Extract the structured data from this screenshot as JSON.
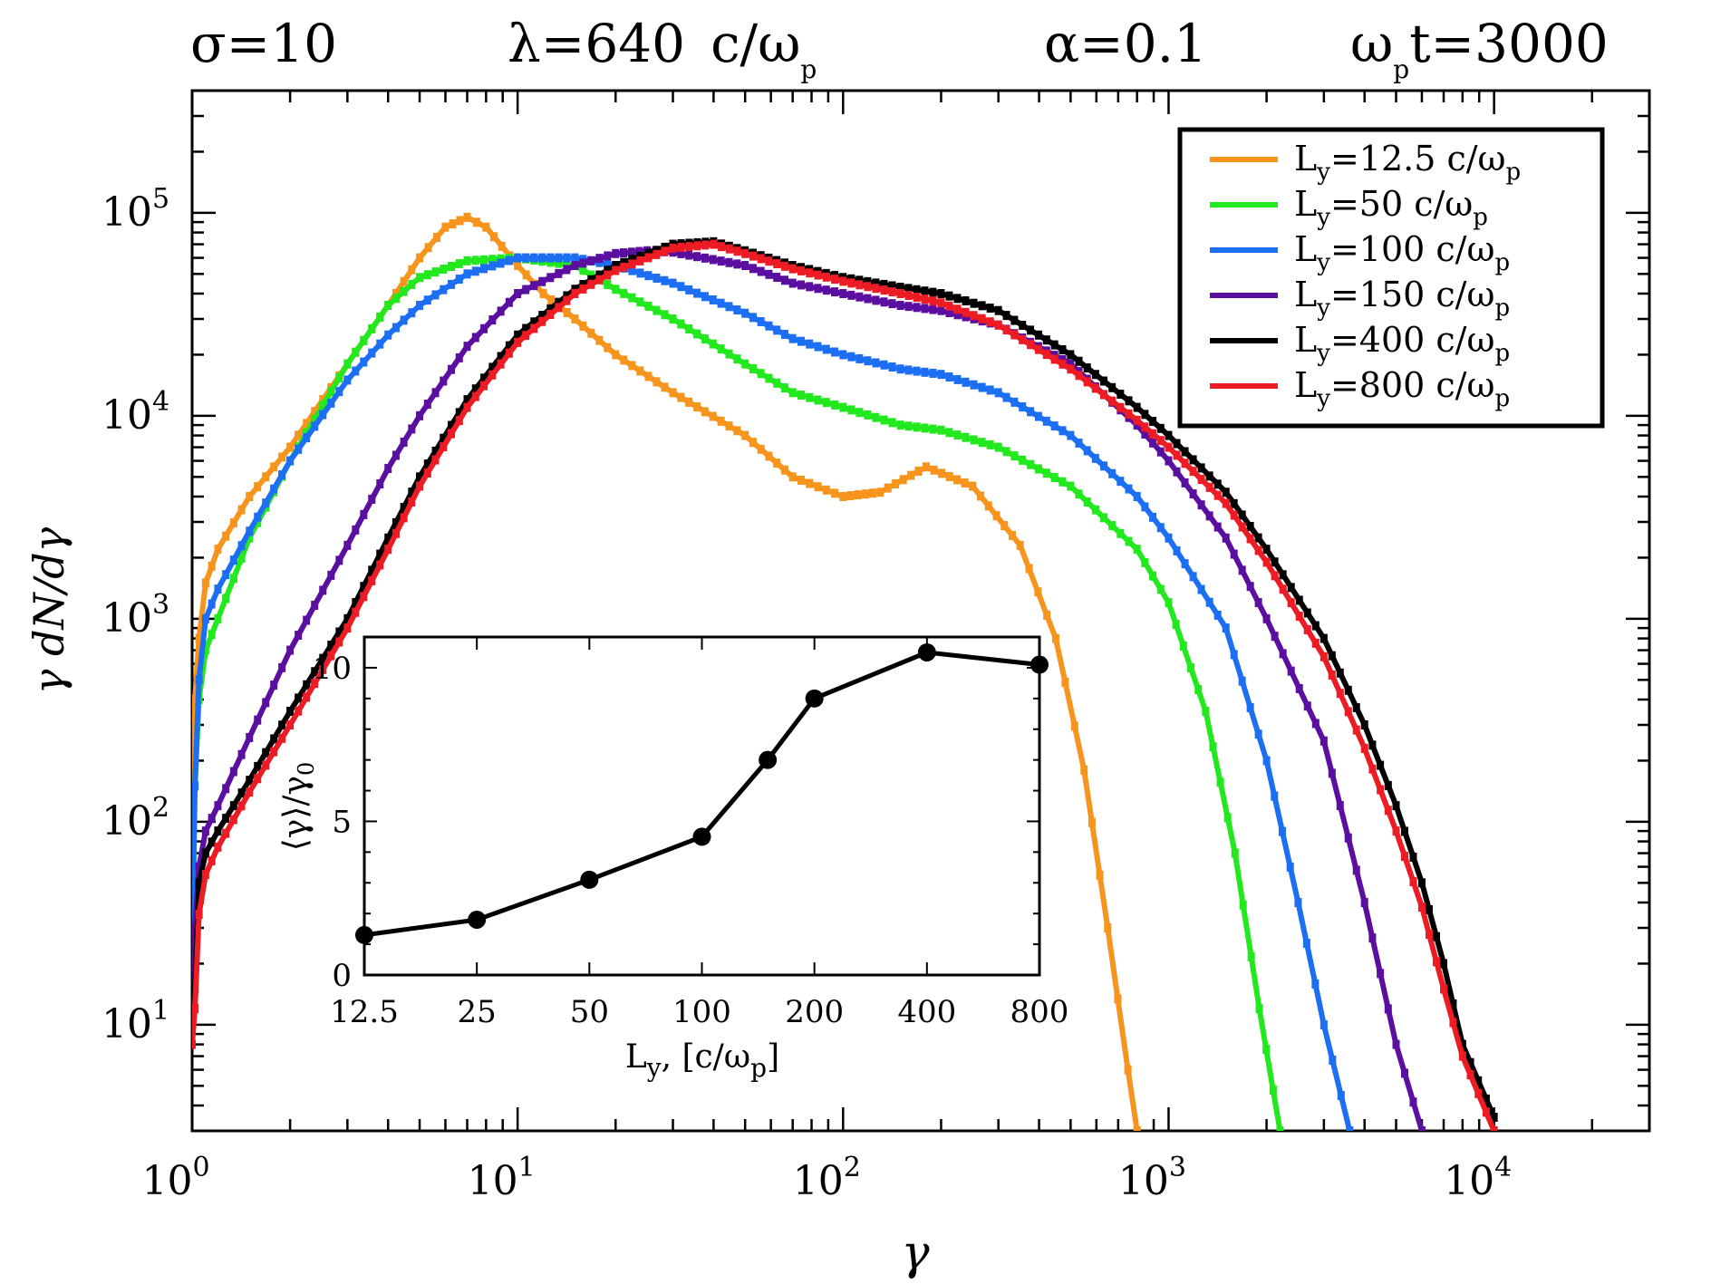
{
  "header": {
    "sigma": "σ=10",
    "lambda": "λ=640",
    "lambda_unit": "c/ω",
    "lambda_unit_sub": "p",
    "alpha": "α=0.1",
    "time_prefix": "ω",
    "time_prefix_sub": "p",
    "time_rest": "t=3000"
  },
  "chart_data": [
    {
      "type": "line",
      "title": "",
      "xlabel": "γ",
      "ylabel": "γ dN/dγ",
      "xscale": "log",
      "yscale": "log",
      "xlim": [
        1,
        30000
      ],
      "ylim": [
        3,
        400000
      ],
      "grid": false,
      "legend_position": "top-right",
      "x_ticks": [
        {
          "base": "10",
          "exp": "0"
        },
        {
          "base": "10",
          "exp": "1"
        },
        {
          "base": "10",
          "exp": "2"
        },
        {
          "base": "10",
          "exp": "3"
        },
        {
          "base": "10",
          "exp": "4"
        }
      ],
      "y_ticks": [
        {
          "base": "10",
          "exp": "1"
        },
        {
          "base": "10",
          "exp": "2"
        },
        {
          "base": "10",
          "exp": "3"
        },
        {
          "base": "10",
          "exp": "4"
        },
        {
          "base": "10",
          "exp": "5"
        }
      ],
      "series": [
        {
          "name": "L_y=12.5 c/ω_p",
          "legend_label": {
            "pre": "L",
            "sub1": "y",
            "mid": "=12.5 c/ω",
            "sub2": "p"
          },
          "color": "#f7941d",
          "points": [
            [
              1.0,
              30
            ],
            [
              1.02,
              400
            ],
            [
              1.05,
              800
            ],
            [
              1.1,
              1500
            ],
            [
              1.2,
              2200
            ],
            [
              1.5,
              4000
            ],
            [
              2,
              7000
            ],
            [
              3,
              18000
            ],
            [
              4,
              35000
            ],
            [
              5,
              60000
            ],
            [
              6,
              85000
            ],
            [
              7,
              95000
            ],
            [
              8,
              85000
            ],
            [
              10,
              55000
            ],
            [
              12,
              40000
            ],
            [
              15,
              30000
            ],
            [
              20,
              20000
            ],
            [
              30,
              13000
            ],
            [
              50,
              8000
            ],
            [
              70,
              5000
            ],
            [
              100,
              4000
            ],
            [
              130,
              4200
            ],
            [
              180,
              5600
            ],
            [
              250,
              4500
            ],
            [
              350,
              2300
            ],
            [
              450,
              800
            ],
            [
              550,
              180
            ],
            [
              650,
              30
            ],
            [
              750,
              6
            ],
            [
              800,
              3
            ]
          ]
        },
        {
          "name": "L_y=50 c/ω_p",
          "legend_label": {
            "pre": "L",
            "sub1": "y",
            "mid": "=50 c/ω",
            "sub2": "p"
          },
          "color": "#22e81e",
          "points": [
            [
              1.0,
              20
            ],
            [
              1.02,
              150
            ],
            [
              1.05,
              400
            ],
            [
              1.1,
              700
            ],
            [
              1.2,
              1000
            ],
            [
              1.5,
              2500
            ],
            [
              2,
              6000
            ],
            [
              3,
              18000
            ],
            [
              4,
              35000
            ],
            [
              5,
              48000
            ],
            [
              7,
              58000
            ],
            [
              10,
              60000
            ],
            [
              15,
              55000
            ],
            [
              20,
              42000
            ],
            [
              30,
              30000
            ],
            [
              50,
              18000
            ],
            [
              70,
              13000
            ],
            [
              100,
              11000
            ],
            [
              150,
              9000
            ],
            [
              200,
              8500
            ],
            [
              300,
              7000
            ],
            [
              500,
              4500
            ],
            [
              800,
              2200
            ],
            [
              1000,
              1200
            ],
            [
              1300,
              350
            ],
            [
              1600,
              70
            ],
            [
              1900,
              12
            ],
            [
              2200,
              3
            ]
          ]
        },
        {
          "name": "L_y=100 c/ω_p",
          "legend_label": {
            "pre": "L",
            "sub1": "y",
            "mid": "=100 c/ω",
            "sub2": "p"
          },
          "color": "#1c6ef2",
          "points": [
            [
              1.0,
              25
            ],
            [
              1.02,
              150
            ],
            [
              1.05,
              500
            ],
            [
              1.1,
              1000
            ],
            [
              1.2,
              1400
            ],
            [
              1.5,
              2700
            ],
            [
              2,
              6000
            ],
            [
              3,
              15000
            ],
            [
              4,
              25000
            ],
            [
              5,
              35000
            ],
            [
              7,
              50000
            ],
            [
              10,
              60000
            ],
            [
              15,
              60000
            ],
            [
              20,
              55000
            ],
            [
              30,
              45000
            ],
            [
              50,
              32000
            ],
            [
              70,
              24000
            ],
            [
              100,
              20000
            ],
            [
              150,
              17000
            ],
            [
              200,
              16000
            ],
            [
              300,
              13000
            ],
            [
              500,
              8000
            ],
            [
              800,
              4000
            ],
            [
              1000,
              2500
            ],
            [
              1500,
              900
            ],
            [
              2000,
              200
            ],
            [
              2500,
              40
            ],
            [
              3000,
              10
            ],
            [
              3600,
              3
            ]
          ]
        },
        {
          "name": "L_y=150 c/ω_p",
          "legend_label": {
            "pre": "L",
            "sub1": "y",
            "mid": "=150 c/ω",
            "sub2": "p"
          },
          "color": "#5b0fa0",
          "points": [
            [
              1.0,
              12
            ],
            [
              1.02,
              30
            ],
            [
              1.05,
              60
            ],
            [
              1.1,
              90
            ],
            [
              1.2,
              120
            ],
            [
              1.5,
              260
            ],
            [
              2,
              700
            ],
            [
              3,
              2300
            ],
            [
              4,
              5500
            ],
            [
              5,
              10000
            ],
            [
              7,
              22000
            ],
            [
              10,
              40000
            ],
            [
              15,
              55000
            ],
            [
              20,
              63000
            ],
            [
              25,
              65000
            ],
            [
              30,
              64000
            ],
            [
              50,
              55000
            ],
            [
              70,
              45000
            ],
            [
              100,
              40000
            ],
            [
              150,
              35000
            ],
            [
              200,
              33000
            ],
            [
              300,
              28000
            ],
            [
              500,
              18000
            ],
            [
              800,
              9000
            ],
            [
              1000,
              6000
            ],
            [
              1500,
              2500
            ],
            [
              2000,
              1000
            ],
            [
              3000,
              250
            ],
            [
              4000,
              40
            ],
            [
              5000,
              8
            ],
            [
              6000,
              3
            ]
          ]
        },
        {
          "name": "L_y=400 c/ω_p",
          "legend_label": {
            "pre": "L",
            "sub1": "y",
            "mid": "=400 c/ω",
            "sub2": "p"
          },
          "color": "#000000",
          "points": [
            [
              1.0,
              10
            ],
            [
              1.02,
              15
            ],
            [
              1.05,
              50
            ],
            [
              1.1,
              70
            ],
            [
              1.2,
              90
            ],
            [
              1.5,
              160
            ],
            [
              2,
              350
            ],
            [
              3,
              1000
            ],
            [
              4,
              2500
            ],
            [
              5,
              5000
            ],
            [
              7,
              12000
            ],
            [
              10,
              25000
            ],
            [
              15,
              42000
            ],
            [
              20,
              55000
            ],
            [
              30,
              70000
            ],
            [
              40,
              72000
            ],
            [
              50,
              65000
            ],
            [
              70,
              55000
            ],
            [
              100,
              48000
            ],
            [
              150,
              43000
            ],
            [
              200,
              40000
            ],
            [
              300,
              33000
            ],
            [
              500,
              20000
            ],
            [
              800,
              11000
            ],
            [
              1000,
              8000
            ],
            [
              1500,
              4200
            ],
            [
              2000,
              2200
            ],
            [
              3000,
              800
            ],
            [
              4000,
              300
            ],
            [
              5000,
              120
            ],
            [
              6000,
              50
            ],
            [
              7000,
              20
            ],
            [
              8000,
              8
            ],
            [
              10000,
              3.5
            ]
          ]
        },
        {
          "name": "L_y=800 c/ω_p",
          "legend_label": {
            "pre": "L",
            "sub1": "y",
            "mid": "=800 c/ω",
            "sub2": "p"
          },
          "color": "#ed1c24",
          "points": [
            [
              1.0,
              8
            ],
            [
              1.02,
              12
            ],
            [
              1.05,
              35
            ],
            [
              1.1,
              55
            ],
            [
              1.2,
              75
            ],
            [
              1.5,
              140
            ],
            [
              2,
              300
            ],
            [
              3,
              900
            ],
            [
              4,
              2200
            ],
            [
              5,
              4500
            ],
            [
              7,
              11000
            ],
            [
              10,
              23000
            ],
            [
              15,
              40000
            ],
            [
              20,
              52000
            ],
            [
              30,
              67000
            ],
            [
              40,
              70000
            ],
            [
              50,
              63000
            ],
            [
              70,
              53000
            ],
            [
              100,
              46000
            ],
            [
              150,
              40000
            ],
            [
              200,
              36000
            ],
            [
              300,
              28000
            ],
            [
              500,
              17000
            ],
            [
              800,
              9500
            ],
            [
              1000,
              7000
            ],
            [
              1500,
              3700
            ],
            [
              2000,
              1900
            ],
            [
              3000,
              650
            ],
            [
              4000,
              230
            ],
            [
              5000,
              90
            ],
            [
              6000,
              38
            ],
            [
              7000,
              15
            ],
            [
              8000,
              7
            ],
            [
              10000,
              3
            ]
          ]
        }
      ]
    },
    {
      "type": "line",
      "title": "",
      "xlabel": "L_y, [c/ω_p]",
      "xlabel_parts": {
        "pre": "L",
        "sub1": "y",
        "mid": ", [c/ω",
        "sub2": "p",
        "post": "]"
      },
      "ylabel": "⟨γ⟩/γ₀",
      "ylabel_parts": {
        "pre": "⟨γ⟩/γ",
        "sub": "0"
      },
      "xscale": "log",
      "xlim": [
        12.5,
        800
      ],
      "ylim": [
        0,
        11
      ],
      "x_tick_labels": [
        "12.5",
        "25",
        "50",
        "100",
        "200",
        "400",
        "800"
      ],
      "y_tick_labels": [
        "0",
        "5",
        "10"
      ],
      "series": [
        {
          "color": "#000000",
          "x": [
            12.5,
            25,
            50,
            100,
            150,
            200,
            400,
            800
          ],
          "y": [
            1.3,
            1.8,
            3.1,
            4.5,
            7.0,
            9.0,
            10.5,
            10.1
          ]
        }
      ]
    }
  ]
}
